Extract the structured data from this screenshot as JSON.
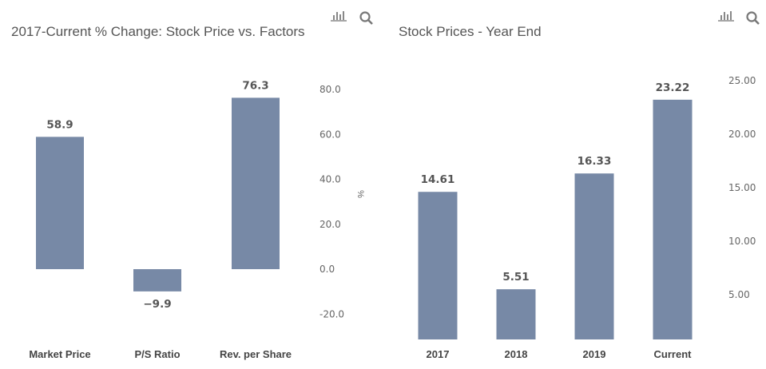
{
  "colors": {
    "bar": "#7789a6",
    "text": "#555555"
  },
  "toolbar_icons": [
    "bar-chart-icon",
    "search-icon"
  ],
  "chart_data": [
    {
      "type": "bar",
      "title": "2017-Current % Change: Stock Price vs. Factors",
      "categories": [
        "Market Price",
        "P/S Ratio",
        "Rev. per Share"
      ],
      "values": [
        58.9,
        -9.9,
        76.3
      ],
      "data_labels": [
        "58.9",
        "−9.9",
        "76.3"
      ],
      "ylabel": "%",
      "yticks": [
        "80.0",
        "60.0",
        "40.0",
        "20.0",
        "0.0",
        "-20.0"
      ],
      "ytick_values": [
        80,
        60,
        40,
        20,
        0,
        -20
      ],
      "ylim": [
        -31,
        80
      ],
      "axis_side": "right",
      "grid": false
    },
    {
      "type": "bar",
      "title": "Stock Prices - Year End",
      "categories": [
        "2017",
        "2018",
        "2019",
        "Current"
      ],
      "values": [
        14.61,
        5.51,
        16.33,
        23.22
      ],
      "data_labels": [
        "14.61",
        "5.51",
        "16.33",
        "23.22"
      ],
      "ylabel": "",
      "yticks": [
        "25.00",
        "20.00",
        "15.00",
        "10.00",
        "5.00"
      ],
      "ytick_values": [
        25,
        20,
        15,
        10,
        5
      ],
      "axis_side": "right",
      "grid": false
    }
  ]
}
